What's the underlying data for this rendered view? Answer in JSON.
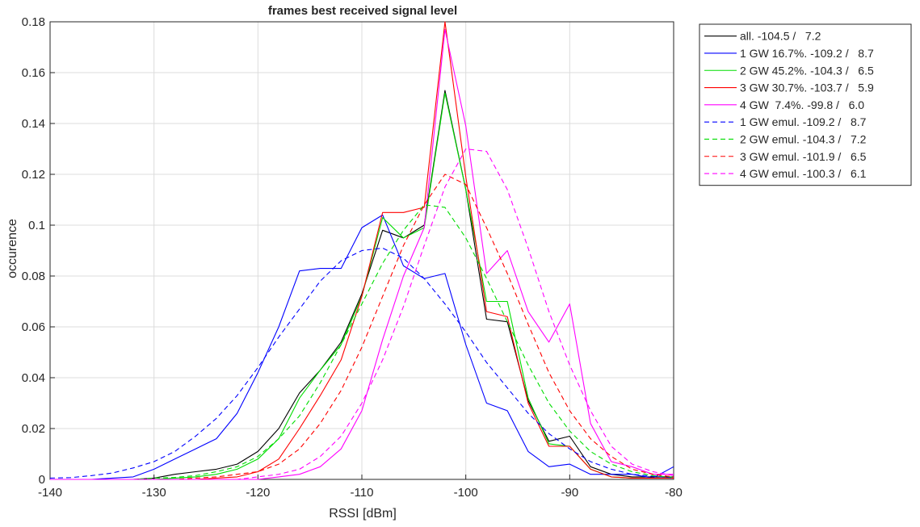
{
  "chart_data": {
    "type": "line",
    "title": "frames best received signal level",
    "xlabel": "RSSI [dBm]",
    "ylabel": "occurence",
    "xlim": [
      -140,
      -80
    ],
    "ylim": [
      0,
      0.18
    ],
    "xticks": [
      -140,
      -130,
      -120,
      -110,
      -100,
      -90,
      -80
    ],
    "xtick_labels": [
      "-140",
      "-130",
      "-120",
      "-110",
      "-100",
      "-90",
      "-80"
    ],
    "yticks": [
      0,
      0.02,
      0.04,
      0.06,
      0.08,
      0.1,
      0.12,
      0.14,
      0.16,
      0.18
    ],
    "ytick_labels": [
      "0",
      "0.02",
      "0.04",
      "0.06",
      "0.08",
      "0.1",
      "0.12",
      "0.14",
      "0.16",
      "0.18"
    ],
    "grid": true,
    "legend_position": "outside-top-right",
    "series": [
      {
        "name": "all. -104.5 /   7.2",
        "color": "#000000",
        "dash": "solid",
        "x": [
          -140,
          -138,
          -136,
          -134,
          -132,
          -130,
          -128,
          -126,
          -124,
          -122,
          -120,
          -118,
          -116,
          -114,
          -112,
          -110,
          -108,
          -106,
          -104,
          -102,
          -100,
          -98,
          -96,
          -94,
          -92,
          -90,
          -88,
          -86,
          -84,
          -82,
          -80
        ],
        "y": [
          0,
          0,
          0,
          0,
          0,
          0.0005,
          0.002,
          0.003,
          0.004,
          0.006,
          0.011,
          0.02,
          0.034,
          0.043,
          0.054,
          0.073,
          0.098,
          0.095,
          0.1,
          0.153,
          0.114,
          0.063,
          0.062,
          0.031,
          0.015,
          0.017,
          0.005,
          0.002,
          0.001,
          0.001,
          0.001
        ]
      },
      {
        "name": "1 GW 16.7%. -109.2 /   8.7",
        "color": "#0000ff",
        "dash": "solid",
        "x": [
          -140,
          -138,
          -136,
          -134,
          -132,
          -130,
          -128,
          -126,
          -124,
          -122,
          -120,
          -118,
          -116,
          -114,
          -112,
          -110,
          -108,
          -106,
          -104,
          -102,
          -100,
          -98,
          -96,
          -94,
          -92,
          -90,
          -88,
          -86,
          -84,
          -82,
          -80
        ],
        "y": [
          0,
          0,
          0,
          0.0005,
          0.001,
          0.004,
          0.008,
          0.012,
          0.016,
          0.026,
          0.042,
          0.06,
          0.082,
          0.083,
          0.083,
          0.099,
          0.104,
          0.084,
          0.079,
          0.081,
          0.053,
          0.03,
          0.027,
          0.011,
          0.005,
          0.006,
          0.002,
          0.002,
          0.002,
          0.0005,
          0.005
        ]
      },
      {
        "name": "2 GW 45.2%. -104.3 /   6.5",
        "color": "#00dd00",
        "dash": "solid",
        "x": [
          -140,
          -138,
          -136,
          -134,
          -132,
          -130,
          -128,
          -126,
          -124,
          -122,
          -120,
          -118,
          -116,
          -114,
          -112,
          -110,
          -108,
          -106,
          -104,
          -102,
          -100,
          -98,
          -96,
          -94,
          -92,
          -90,
          -88,
          -86,
          -84,
          -82,
          -80
        ],
        "y": [
          0,
          0,
          0,
          0,
          0,
          0,
          0.0005,
          0.001,
          0.002,
          0.004,
          0.008,
          0.016,
          0.032,
          0.043,
          0.053,
          0.072,
          0.103,
          0.095,
          0.099,
          0.152,
          0.114,
          0.07,
          0.07,
          0.032,
          0.014,
          0.013,
          0.004,
          0.001,
          0.0005,
          0.0005,
          0.0005
        ]
      },
      {
        "name": "3 GW 30.7%. -103.7 /   5.9",
        "color": "#ff0000",
        "dash": "solid",
        "x": [
          -140,
          -138,
          -136,
          -134,
          -132,
          -130,
          -128,
          -126,
          -124,
          -122,
          -120,
          -118,
          -116,
          -114,
          -112,
          -110,
          -108,
          -106,
          -104,
          -102,
          -100,
          -98,
          -96,
          -94,
          -92,
          -90,
          -88,
          -86,
          -84,
          -82,
          -80
        ],
        "y": [
          0,
          0,
          0,
          0,
          0,
          0,
          0,
          0,
          0.0005,
          0.001,
          0.003,
          0.008,
          0.02,
          0.033,
          0.047,
          0.072,
          0.105,
          0.105,
          0.107,
          0.18,
          0.119,
          0.066,
          0.064,
          0.03,
          0.013,
          0.013,
          0.004,
          0.001,
          0.0005,
          0.0005,
          0.0005
        ]
      },
      {
        "name": "4 GW  7.4%. -99.8 /   6.0",
        "color": "#ff00ff",
        "dash": "solid",
        "x": [
          -140,
          -138,
          -136,
          -134,
          -132,
          -130,
          -128,
          -126,
          -124,
          -122,
          -120,
          -118,
          -116,
          -114,
          -112,
          -110,
          -108,
          -106,
          -104,
          -102,
          -100,
          -98,
          -96,
          -94,
          -92,
          -90,
          -88,
          -86,
          -84,
          -82,
          -80
        ],
        "y": [
          0,
          0,
          0,
          0,
          0,
          0,
          0,
          0,
          0,
          0,
          0,
          0.001,
          0.002,
          0.005,
          0.012,
          0.027,
          0.055,
          0.08,
          0.099,
          0.177,
          0.139,
          0.081,
          0.09,
          0.066,
          0.054,
          0.069,
          0.022,
          0.007,
          0.005,
          0.002,
          0.002
        ]
      },
      {
        "name": "1 GW emul. -109.2 /   8.7",
        "color": "#0000ff",
        "dash": "dashed",
        "x": [
          -140,
          -138,
          -136,
          -134,
          -132,
          -130,
          -128,
          -126,
          -124,
          -122,
          -120,
          -118,
          -116,
          -114,
          -112,
          -110,
          -108,
          -106,
          -104,
          -102,
          -100,
          -98,
          -96,
          -94,
          -92,
          -90,
          -88,
          -86,
          -84,
          -82,
          -80
        ],
        "y": [
          0.0005,
          0.0007,
          0.0015,
          0.0025,
          0.0045,
          0.007,
          0.011,
          0.017,
          0.024,
          0.033,
          0.044,
          0.056,
          0.067,
          0.078,
          0.086,
          0.09,
          0.091,
          0.087,
          0.079,
          0.069,
          0.058,
          0.046,
          0.036,
          0.026,
          0.018,
          0.012,
          0.007,
          0.004,
          0.002,
          0.0012,
          0.0006
        ]
      },
      {
        "name": "2 GW emul. -104.3 /   7.2",
        "color": "#00dd00",
        "dash": "dashed",
        "x": [
          -140,
          -138,
          -136,
          -134,
          -132,
          -130,
          -128,
          -126,
          -124,
          -122,
          -120,
          -118,
          -116,
          -114,
          -112,
          -110,
          -108,
          -106,
          -104,
          -102,
          -100,
          -98,
          -96,
          -94,
          -92,
          -90,
          -88,
          -86,
          -84,
          -82,
          -80
        ],
        "y": [
          0,
          0,
          0,
          0,
          0,
          0.0005,
          0.0008,
          0.0015,
          0.003,
          0.005,
          0.009,
          0.016,
          0.025,
          0.038,
          0.053,
          0.069,
          0.085,
          0.098,
          0.108,
          0.107,
          0.095,
          0.079,
          0.062,
          0.045,
          0.03,
          0.019,
          0.011,
          0.006,
          0.003,
          0.0015,
          0.0008
        ]
      },
      {
        "name": "3 GW emul. -101.9 /   6.5",
        "color": "#ff0000",
        "dash": "dashed",
        "x": [
          -140,
          -138,
          -136,
          -134,
          -132,
          -130,
          -128,
          -126,
          -124,
          -122,
          -120,
          -118,
          -116,
          -114,
          -112,
          -110,
          -108,
          -106,
          -104,
          -102,
          -100,
          -98,
          -96,
          -94,
          -92,
          -90,
          -88,
          -86,
          -84,
          -82,
          -80
        ],
        "y": [
          0,
          0,
          0,
          0,
          0,
          0,
          0,
          0.0005,
          0.001,
          0.002,
          0.003,
          0.006,
          0.012,
          0.022,
          0.035,
          0.052,
          0.072,
          0.092,
          0.108,
          0.12,
          0.116,
          0.099,
          0.081,
          0.061,
          0.042,
          0.027,
          0.016,
          0.009,
          0.004,
          0.002,
          0.001
        ]
      },
      {
        "name": "4 GW emul. -100.3 /   6.1",
        "color": "#ff00ff",
        "dash": "dashed",
        "x": [
          -140,
          -138,
          -136,
          -134,
          -132,
          -130,
          -128,
          -126,
          -124,
          -122,
          -120,
          -118,
          -116,
          -114,
          -112,
          -110,
          -108,
          -106,
          -104,
          -102,
          -100,
          -98,
          -96,
          -94,
          -92,
          -90,
          -88,
          -86,
          -84,
          -82,
          -80
        ],
        "y": [
          0,
          0,
          0,
          0,
          0,
          0,
          0,
          0,
          0,
          0,
          0.001,
          0.002,
          0.004,
          0.009,
          0.017,
          0.03,
          0.047,
          0.068,
          0.092,
          0.115,
          0.13,
          0.129,
          0.114,
          0.091,
          0.066,
          0.045,
          0.027,
          0.013,
          0.006,
          0.003,
          0.0015
        ]
      }
    ]
  }
}
